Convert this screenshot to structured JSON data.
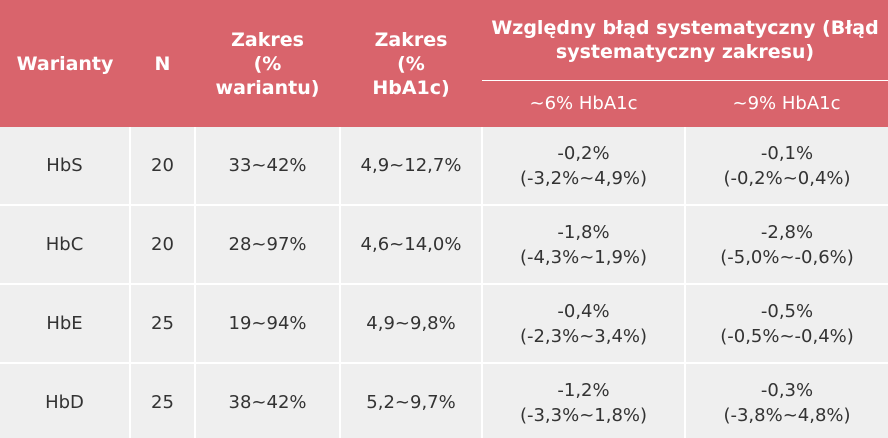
{
  "header": {
    "columns": [
      [
        "Warianty"
      ],
      [
        "N"
      ],
      [
        "Zakres",
        "(%",
        "wariantu)"
      ],
      [
        "Zakres",
        "(%",
        "HbA1c)"
      ]
    ],
    "group": [
      "Względny błąd systematyczny (Błąd",
      "systematyczny zakresu)"
    ],
    "subcolumns": [
      "~6% HbA1c",
      "~9% HbA1c"
    ]
  },
  "table": {
    "rows": [
      [
        [
          "HbS"
        ],
        [
          "20"
        ],
        [
          "33~42%"
        ],
        [
          "4,9~12,7%"
        ],
        [
          "-0,2%",
          "(-3,2%~4,9%)"
        ],
        [
          "-0,1%",
          "(-0,2%~0,4%)"
        ]
      ],
      [
        [
          "HbC"
        ],
        [
          "20"
        ],
        [
          "28~97%"
        ],
        [
          "4,6~14,0%"
        ],
        [
          "-1,8%",
          "(-4,3%~1,9%)"
        ],
        [
          "-2,8%",
          "(-5,0%~-0,6%)"
        ]
      ],
      [
        [
          "HbE"
        ],
        [
          "25"
        ],
        [
          "19~94%"
        ],
        [
          "4,9~9,8%"
        ],
        [
          "-0,4%",
          "(-2,3%~3,4%)"
        ],
        [
          "-0,5%",
          "(-0,5%~-0,4%)"
        ]
      ],
      [
        [
          "HbD"
        ],
        [
          "25"
        ],
        [
          "38~42%"
        ],
        [
          "5,2~9,7%"
        ],
        [
          "-1,2%",
          "(-3,3%~1,8%)"
        ],
        [
          "-0,3%",
          "(-3,8%~4,8%)"
        ]
      ]
    ]
  }
}
